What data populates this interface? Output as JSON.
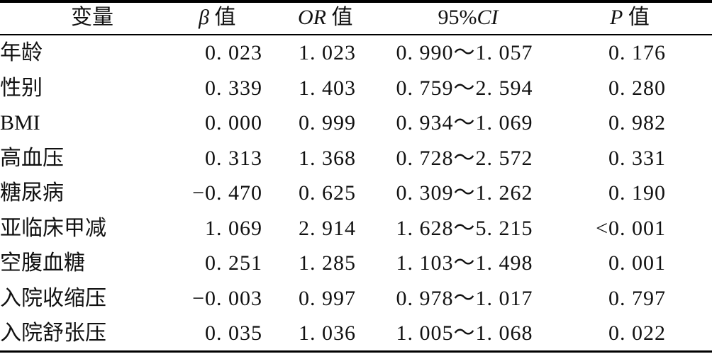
{
  "table": {
    "headers": {
      "variable": "变量",
      "beta_symbol": "β",
      "beta_suffix": " 值",
      "or_symbol": "OR",
      "or_suffix": " 值",
      "ci_prefix": "95%",
      "ci_symbol": "CI",
      "p_symbol": "P",
      "p_suffix": " 值"
    },
    "rows": [
      {
        "variable": "年龄",
        "beta": "0. 023",
        "or": "1. 023",
        "ci": "0. 990～1. 057",
        "p": "0. 176"
      },
      {
        "variable": "性别",
        "beta": "0. 339",
        "or": "1. 403",
        "ci": "0. 759～2. 594",
        "p": "0. 280"
      },
      {
        "variable": "BMI",
        "beta": "0. 000",
        "or": "0. 999",
        "ci": "0. 934～1. 069",
        "p": "0. 982"
      },
      {
        "variable": "高血压",
        "beta": "0. 313",
        "or": "1. 368",
        "ci": "0. 728～2. 572",
        "p": "0. 331"
      },
      {
        "variable": "糖尿病",
        "beta": "−0. 470",
        "or": "0. 625",
        "ci": "0. 309～1. 262",
        "p": "0. 190"
      },
      {
        "variable": "亚临床甲减",
        "beta": "1. 069",
        "or": "2. 914",
        "ci": "1. 628～5. 215",
        "p": "<0. 001"
      },
      {
        "variable": "空腹血糖",
        "beta": "0. 251",
        "or": "1. 285",
        "ci": "1. 103～1. 498",
        "p": "0. 001"
      },
      {
        "variable": "入院收缩压",
        "beta": "−0. 003",
        "or": "0. 997",
        "ci": "0. 978～1. 017",
        "p": "0. 797"
      },
      {
        "variable": "入院舒张压",
        "beta": "0. 035",
        "or": "1. 036",
        "ci": "1. 005～1. 068",
        "p": "0. 022"
      }
    ]
  }
}
